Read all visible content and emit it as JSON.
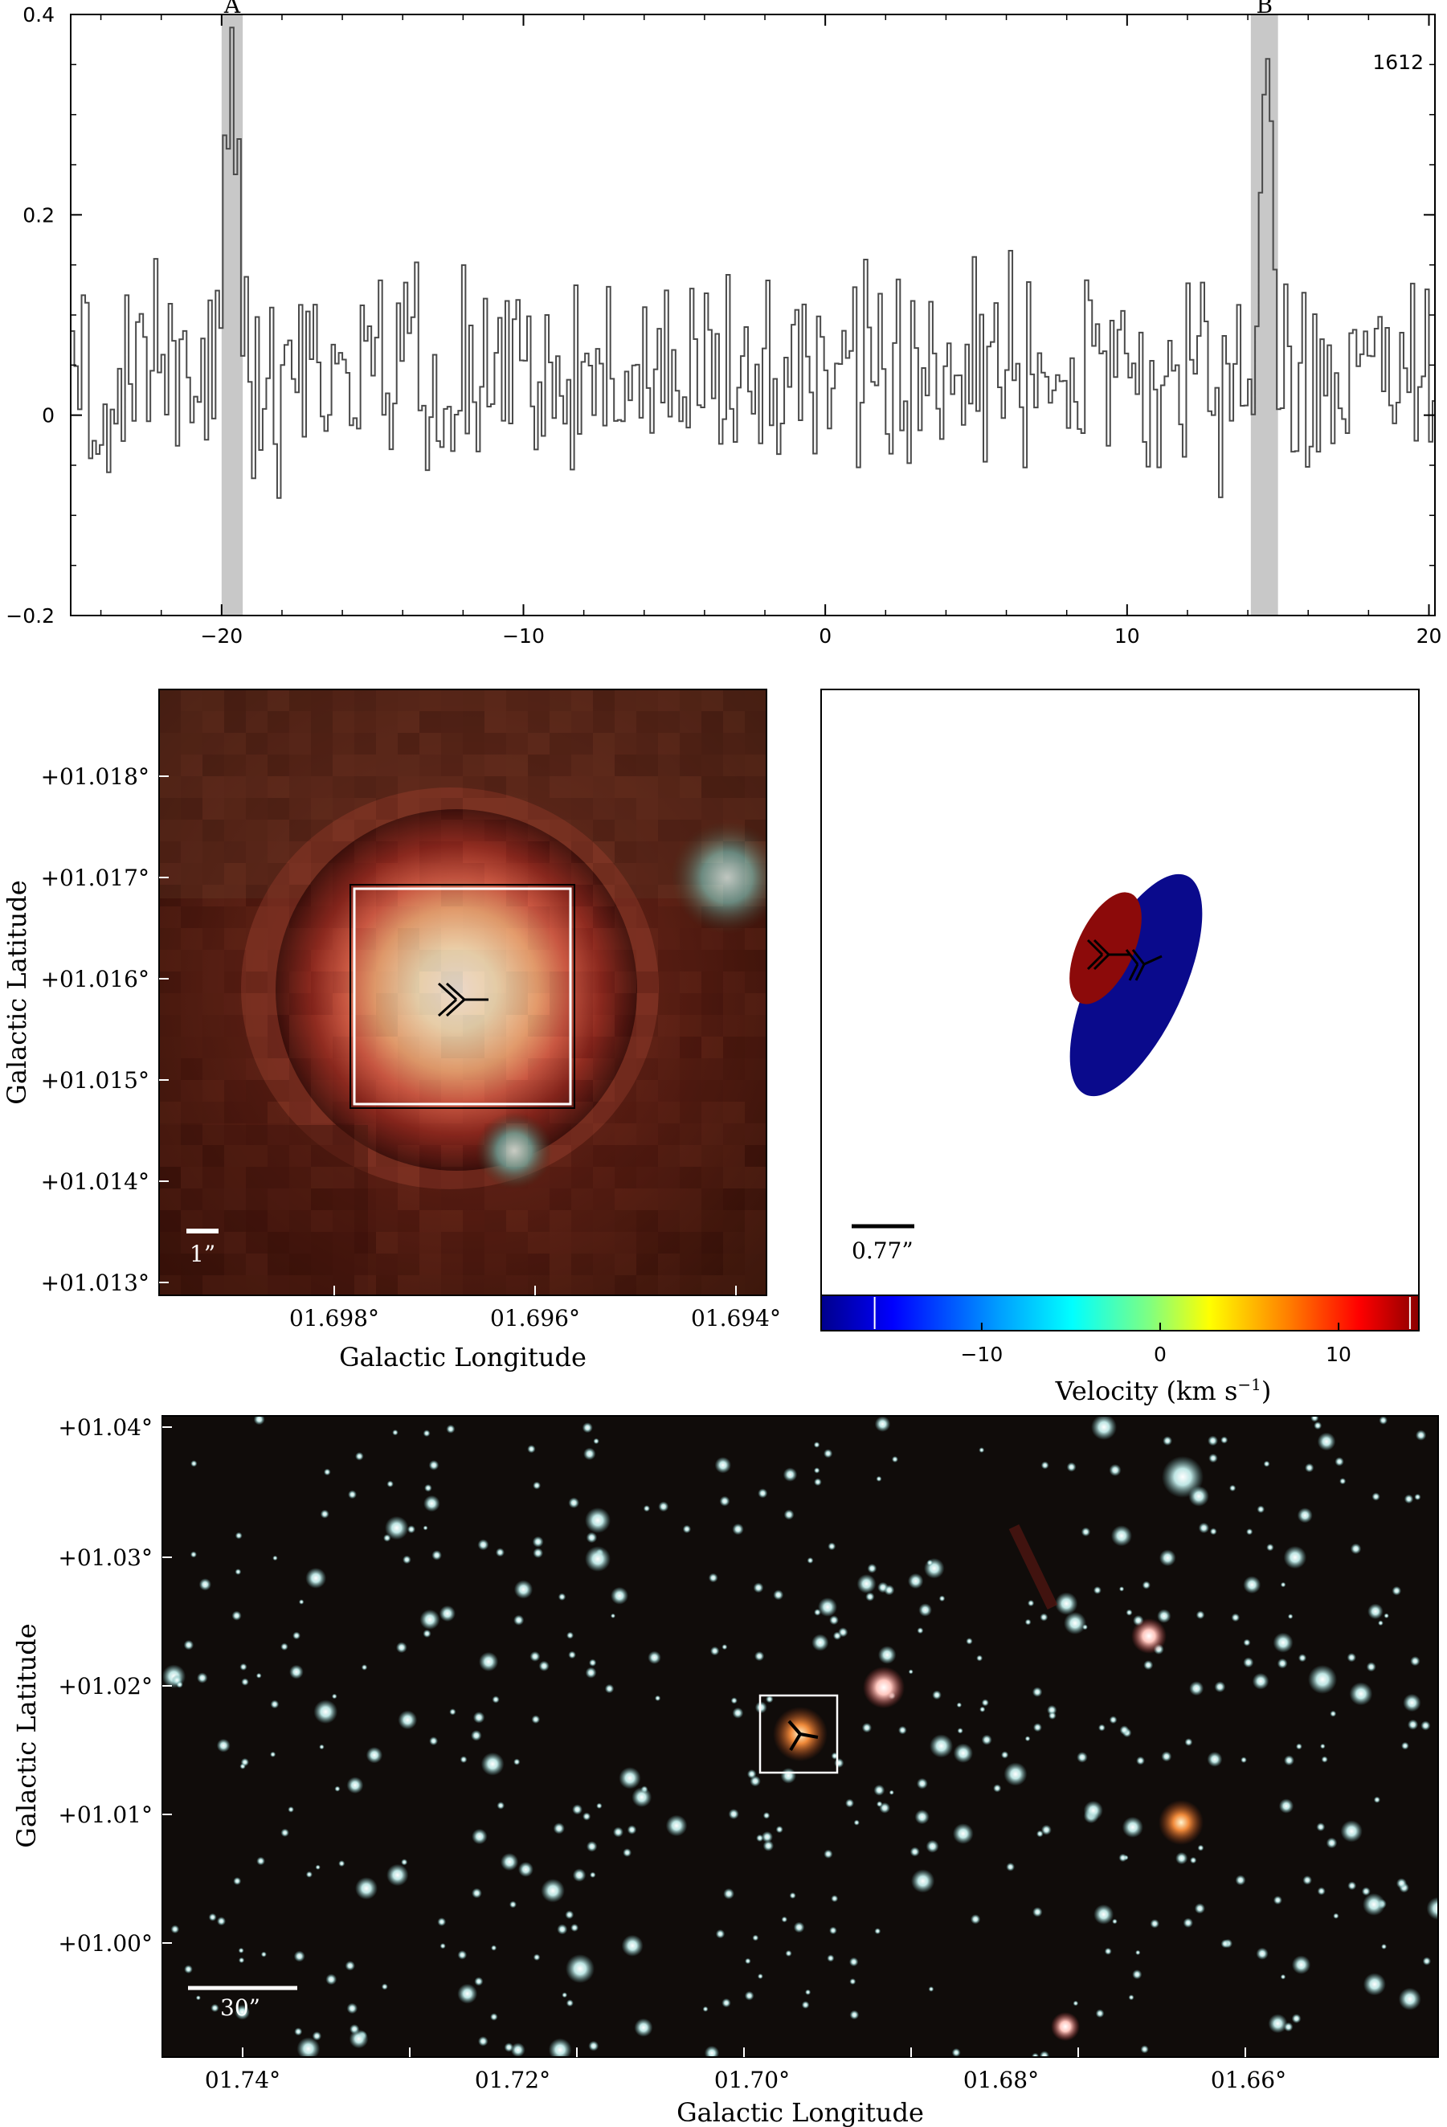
{
  "chart_data": [
    {
      "type": "line",
      "chart": "spectrum",
      "annotation_label": "1612",
      "xlim": [
        -25,
        20.2
      ],
      "ylim": [
        -0.2,
        0.4
      ],
      "xticks": [
        -20,
        -10,
        0,
        10,
        20
      ],
      "xtick_labels": [
        "−20",
        "−10",
        "0",
        "10",
        "20"
      ],
      "yticks": [
        -0.2,
        0,
        0.2,
        0.4
      ],
      "ytick_labels": [
        "−0.2",
        "0",
        "0.2",
        "0.4"
      ],
      "highlight_bands": [
        {
          "label": "A",
          "x": [
            -20.0,
            -19.3
          ],
          "color": "#c8c8c8"
        },
        {
          "label": "B",
          "x": [
            14.1,
            15.0
          ],
          "color": "#c8c8c8"
        }
      ],
      "series_peaks": [
        {
          "x": -19.7,
          "y": 0.36
        },
        {
          "x": 14.6,
          "y": 0.35
        }
      ],
      "series_color": "#4a4a4a",
      "noise_sigma": 0.065
    },
    {
      "type": "heatmap",
      "chart": "zoom-image",
      "xlabel": "Galactic Longitude",
      "ylabel": "Galactic Latitude",
      "xtick_labels": [
        "01.698°",
        "01.696°",
        "01.694°"
      ],
      "ytick_labels": [
        "+01.018°",
        "+01.017°",
        "+01.016°",
        "+01.015°",
        "+01.014°",
        "+01.013°"
      ],
      "scale_bar_label": "1”"
    },
    {
      "type": "scatter",
      "chart": "velocity-ellipses",
      "scale_bar_label": "0.77”",
      "colorbar_ticks": [
        "−10",
        "0",
        "10"
      ],
      "colorbar_range": [
        -19,
        14.5
      ],
      "colorbar_label": "Velocity (km s",
      "colorbar_label_exp": "−1",
      "colorbar_label_end": ")",
      "ellipses": [
        {
          "velocity": -16,
          "color": "#0a0a8c"
        },
        {
          "velocity": 14,
          "color": "#8c0a0a"
        }
      ]
    },
    {
      "type": "heatmap",
      "chart": "wide-field-image",
      "xlabel": "Galactic Longitude",
      "ylabel": "Galactic Latitude",
      "xtick_labels": [
        "01.74°",
        "01.72°",
        "01.70°",
        "01.68°",
        "01.66°"
      ],
      "ytick_labels": [
        "+01.04°",
        "+01.03°",
        "+01.02°",
        "+01.01°",
        "+01.00°"
      ],
      "scale_bar_label": "30”"
    }
  ]
}
